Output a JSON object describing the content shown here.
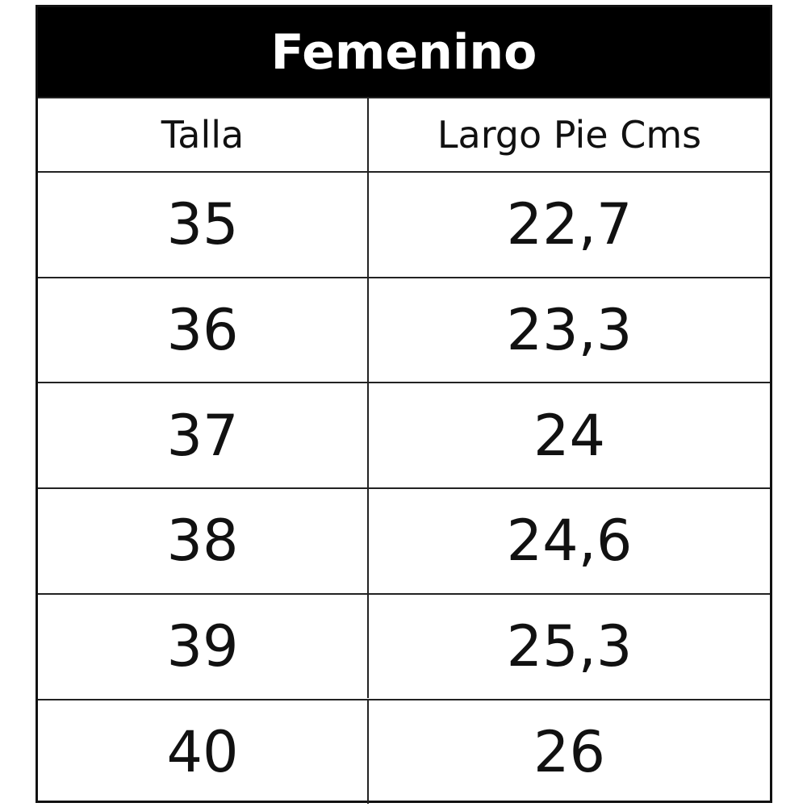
{
  "title": "Femenino",
  "columns": [
    "Talla",
    "Largo Pie Cms"
  ],
  "rows": [
    [
      "35",
      "22,7"
    ],
    [
      "36",
      "23,3"
    ],
    [
      "37",
      "24"
    ],
    [
      "38",
      "24,6"
    ],
    [
      "39",
      "25,3"
    ],
    [
      "40",
      "26"
    ]
  ]
}
